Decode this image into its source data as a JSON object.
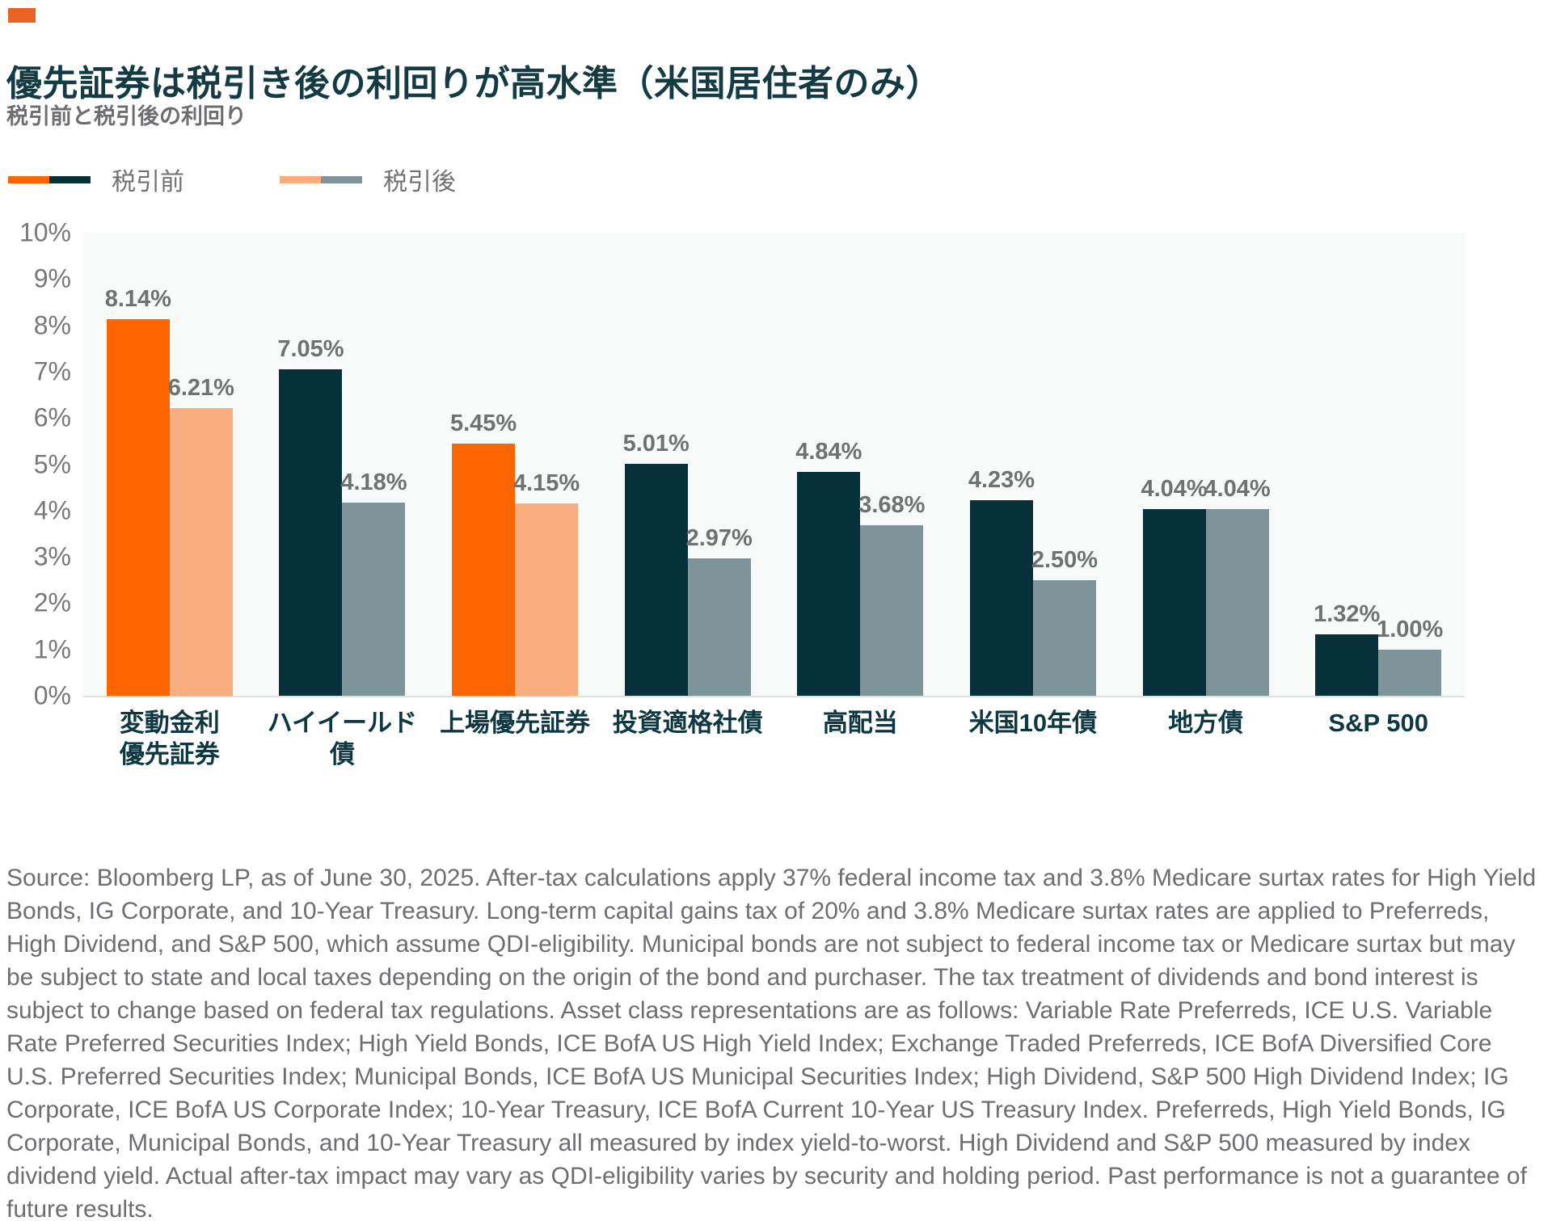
{
  "header": {
    "title": "優先証券は税引き後の利回りが高水準（米国居住者のみ）",
    "subtitle": "税引前と税引後の利回り"
  },
  "legend": {
    "pretax_label": "税引前",
    "posttax_label": "税引後"
  },
  "colors": {
    "accent_square": "#e96325",
    "pretax_highlight": "#fd6500",
    "posttax_highlight": "#faae80",
    "pretax_default": "#06303a",
    "posttax_default": "#7e9499",
    "plot_background": "#f8f9f9"
  },
  "chart_data": {
    "type": "bar",
    "title": "税引前と税引後の利回り",
    "categories": [
      "変動金利\n優先証券",
      "ハイイールド\n債",
      "上場優先証券",
      "投資適格社債",
      "高配当",
      "米国10年債",
      "地方債",
      "S&P 500"
    ],
    "series": [
      {
        "name": "税引前",
        "values": [
          8.14,
          7.05,
          5.45,
          5.01,
          4.84,
          4.23,
          4.04,
          1.32
        ]
      },
      {
        "name": "税引後",
        "values": [
          6.21,
          4.18,
          4.15,
          2.97,
          3.68,
          2.5,
          4.04,
          1.0
        ]
      }
    ],
    "highlight_categories": [
      0,
      2
    ],
    "ylim": [
      0,
      10
    ],
    "ytick_step": 1,
    "ytick_suffix": "%",
    "data_label_suffix": "%",
    "grid": "off",
    "legend_position": "top-left"
  },
  "footer": {
    "source": "Source: Bloomberg LP, as of June 30, 2025. After-tax calculations apply 37% federal income tax and 3.8% Medicare surtax rates for High Yield Bonds, IG Corporate, and 10-Year Treasury. Long-term capital gains tax of 20% and 3.8% Medicare surtax rates are applied to Preferreds, High Dividend, and S&P 500, which assume QDI-eligibility. Municipal bonds are not subject to federal income tax or Medicare surtax but may be subject to state and local taxes depending on the origin of the bond and purchaser. The tax treatment of dividends and bond interest is subject to change based on federal tax regulations. Asset class representations are as follows: Variable Rate Preferreds, ICE U.S. Variable Rate Preferred Securities Index; High Yield Bonds, ICE BofA US High Yield Index; Exchange Traded Preferreds, ICE BofA Diversified Core U.S. Preferred Securities Index; Municipal Bonds, ICE BofA US Municipal Securities Index; High Dividend, S&P 500 High Dividend Index; IG Corporate, ICE BofA US Corporate Index; 10-Year Treasury, ICE BofA Current 10-Year US Treasury Index. Preferreds, High Yield Bonds, IG Corporate, Municipal Bonds, and 10-Year Treasury all measured by index yield-to-worst. High Dividend and S&P 500 measured by index dividend yield. Actual after-tax impact may vary as QDI-eligibility varies by security and holding period. Past performance is not a guarantee of future results."
  }
}
